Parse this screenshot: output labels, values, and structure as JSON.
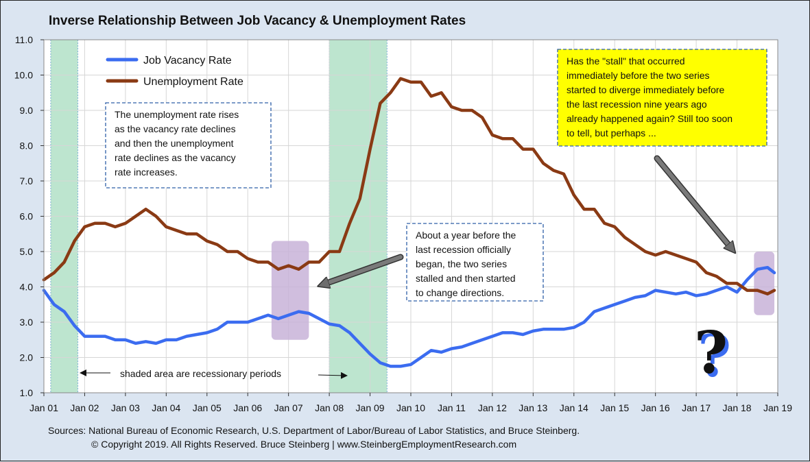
{
  "colors": {
    "vacancy": "#3b6cf0",
    "unemployment": "#8a3a14",
    "recession": "#bde5cf",
    "highlight": "#c8b3d8",
    "note_yellow": "#ffff00"
  },
  "footer": {
    "sources": "Sources: National Bureau of Economic Research, U.S. Department of Labor/Bureau of Labor Statistics, and Bruce Steinberg.",
    "copyright": "© Copyright 2019. All Rights Reserved. Bruce Steinberg | www.SteinbergEmploymentResearch.com"
  },
  "chart_data": {
    "type": "line",
    "title": "Inverse Relationship Between Job Vacancy & Unemployment Rates",
    "xlabel": "",
    "ylabel": "",
    "x_ticks": [
      "Jan 01",
      "Jan 02",
      "Jan 03",
      "Jan 04",
      "Jan 05",
      "Jan 06",
      "Jan 07",
      "Jan 08",
      "Jan 09",
      "Jan 10",
      "Jan 11",
      "Jan 12",
      "Jan 13",
      "Jan 14",
      "Jan 15",
      "Jan 16",
      "Jan 17",
      "Jan 18",
      "Jan 19"
    ],
    "y_ticks": [
      "1.0",
      "2.0",
      "3.0",
      "4.0",
      "5.0",
      "6.0",
      "7.0",
      "8.0",
      "9.0",
      "10.0",
      "11.0"
    ],
    "xlim": [
      "Jan 01",
      "Jan 19"
    ],
    "ylim": [
      1.0,
      11.0
    ],
    "grid": true,
    "legend_position": "top-left",
    "recessions": [
      {
        "start": "Mar 01",
        "end": "Nov 01"
      },
      {
        "start": "Jan 08",
        "end": "Jun 09"
      }
    ],
    "highlight_boxes": [
      {
        "start": "Aug 06",
        "end": "Jul 07",
        "ymin": 2.5,
        "ymax": 5.3
      },
      {
        "start": "Jun 18",
        "end": "Dec 18",
        "ymin": 3.2,
        "ymax": 5.0
      }
    ],
    "series": [
      {
        "name": "Job Vacancy Rate",
        "x": [
          "Jan 01",
          "Apr 01",
          "Jul 01",
          "Oct 01",
          "Jan 02",
          "Apr 02",
          "Jul 02",
          "Oct 02",
          "Jan 03",
          "Apr 03",
          "Jul 03",
          "Oct 03",
          "Jan 04",
          "Apr 04",
          "Jul 04",
          "Oct 04",
          "Jan 05",
          "Apr 05",
          "Jul 05",
          "Oct 05",
          "Jan 06",
          "Apr 06",
          "Jul 06",
          "Oct 06",
          "Jan 07",
          "Apr 07",
          "Jul 07",
          "Oct 07",
          "Jan 08",
          "Apr 08",
          "Jul 08",
          "Oct 08",
          "Jan 09",
          "Apr 09",
          "Jul 09",
          "Oct 09",
          "Jan 10",
          "Apr 10",
          "Jul 10",
          "Oct 10",
          "Jan 11",
          "Apr 11",
          "Jul 11",
          "Oct 11",
          "Jan 12",
          "Apr 12",
          "Jul 12",
          "Oct 12",
          "Jan 13",
          "Apr 13",
          "Jul 13",
          "Oct 13",
          "Jan 14",
          "Apr 14",
          "Jul 14",
          "Oct 14",
          "Jan 15",
          "Apr 15",
          "Jul 15",
          "Oct 15",
          "Jan 16",
          "Apr 16",
          "Jul 16",
          "Oct 16",
          "Jan 17",
          "Apr 17",
          "Jul 17",
          "Oct 17",
          "Jan 18",
          "Apr 18",
          "Jul 18",
          "Oct 18",
          "Dec 18"
        ],
        "values": [
          3.9,
          3.5,
          3.3,
          2.9,
          2.6,
          2.6,
          2.6,
          2.5,
          2.5,
          2.4,
          2.45,
          2.4,
          2.5,
          2.5,
          2.6,
          2.65,
          2.7,
          2.8,
          3.0,
          3.0,
          3.0,
          3.1,
          3.2,
          3.1,
          3.2,
          3.3,
          3.25,
          3.1,
          2.95,
          2.9,
          2.7,
          2.4,
          2.1,
          1.85,
          1.75,
          1.75,
          1.8,
          2.0,
          2.2,
          2.15,
          2.25,
          2.3,
          2.4,
          2.5,
          2.6,
          2.7,
          2.7,
          2.65,
          2.75,
          2.8,
          2.8,
          2.8,
          2.85,
          3.0,
          3.3,
          3.4,
          3.5,
          3.6,
          3.7,
          3.75,
          3.9,
          3.85,
          3.8,
          3.85,
          3.75,
          3.8,
          3.9,
          4.0,
          3.85,
          4.2,
          4.5,
          4.55,
          4.4
        ]
      },
      {
        "name": "Unemployment Rate",
        "x": [
          "Jan 01",
          "Apr 01",
          "Jul 01",
          "Oct 01",
          "Jan 02",
          "Apr 02",
          "Jul 02",
          "Oct 02",
          "Jan 03",
          "Apr 03",
          "Jul 03",
          "Oct 03",
          "Jan 04",
          "Apr 04",
          "Jul 04",
          "Oct 04",
          "Jan 05",
          "Apr 05",
          "Jul 05",
          "Oct 05",
          "Jan 06",
          "Apr 06",
          "Jul 06",
          "Oct 06",
          "Jan 07",
          "Apr 07",
          "Jul 07",
          "Oct 07",
          "Jan 08",
          "Apr 08",
          "Jul 08",
          "Oct 08",
          "Jan 09",
          "Apr 09",
          "Jul 09",
          "Oct 09",
          "Jan 10",
          "Apr 10",
          "Jul 10",
          "Oct 10",
          "Jan 11",
          "Apr 11",
          "Jul 11",
          "Oct 11",
          "Jan 12",
          "Apr 12",
          "Jul 12",
          "Oct 12",
          "Jan 13",
          "Apr 13",
          "Jul 13",
          "Oct 13",
          "Jan 14",
          "Apr 14",
          "Jul 14",
          "Oct 14",
          "Jan 15",
          "Apr 15",
          "Jul 15",
          "Oct 15",
          "Jan 16",
          "Apr 16",
          "Jul 16",
          "Oct 16",
          "Jan 17",
          "Apr 17",
          "Jul 17",
          "Oct 17",
          "Jan 18",
          "Apr 18",
          "Jul 18",
          "Oct 18",
          "Dec 18"
        ],
        "values": [
          4.2,
          4.4,
          4.7,
          5.3,
          5.7,
          5.8,
          5.8,
          5.7,
          5.8,
          6.0,
          6.2,
          6.0,
          5.7,
          5.6,
          5.5,
          5.5,
          5.3,
          5.2,
          5.0,
          5.0,
          4.8,
          4.7,
          4.7,
          4.5,
          4.6,
          4.5,
          4.7,
          4.7,
          5.0,
          5.0,
          5.8,
          6.5,
          7.9,
          9.2,
          9.5,
          9.9,
          9.8,
          9.8,
          9.4,
          9.5,
          9.1,
          9.0,
          9.0,
          8.8,
          8.3,
          8.2,
          8.2,
          7.9,
          7.9,
          7.5,
          7.3,
          7.2,
          6.6,
          6.2,
          6.2,
          5.8,
          5.7,
          5.4,
          5.2,
          5.0,
          4.9,
          5.0,
          4.9,
          4.8,
          4.7,
          4.4,
          4.3,
          4.1,
          4.1,
          3.9,
          3.9,
          3.8,
          3.9
        ]
      }
    ],
    "annotations": [
      {
        "id": "note1",
        "lines": [
          "The unemployment rate rises",
          "as the vacancy rate declines",
          "and then the unemployment",
          "rate declines as the vacancy",
          "rate increases."
        ]
      },
      {
        "id": "note2",
        "lines": [
          "About a year before the",
          "last recession officially",
          "began, the two series",
          "stalled and then started",
          "to change directions."
        ]
      },
      {
        "id": "note3",
        "lines": [
          "Has the \"stall\" that occurred",
          "immediately before the two series",
          "started to diverge immediately before",
          "the last recession nine years ago",
          "already happened again? Still too soon",
          "to tell, but perhaps ..."
        ]
      },
      {
        "id": "shaded",
        "lines": [
          "shaded area are recessionary periods"
        ]
      },
      {
        "id": "qmark",
        "lines": [
          "?"
        ]
      }
    ]
  }
}
